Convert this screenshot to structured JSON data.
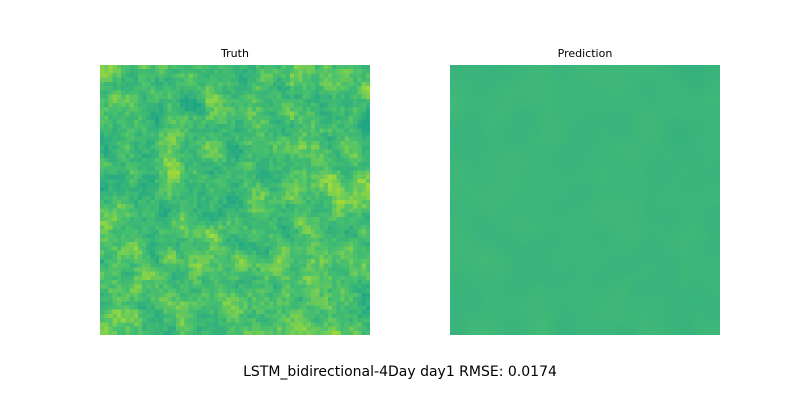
{
  "chart_data": [
    {
      "type": "heatmap",
      "title": "Truth",
      "colormap": "viridis",
      "grid": false,
      "axes_visible": false,
      "resolution": 64,
      "value_range": [
        0.55,
        0.95
      ],
      "seed": 7
    },
    {
      "type": "heatmap",
      "title": "Prediction",
      "colormap": "viridis",
      "grid": false,
      "axes_visible": false,
      "resolution": 64,
      "value_range": [
        0.55,
        0.95
      ],
      "seed": 11
    }
  ],
  "suptitle": "LSTM_bidirectional-4Day day1 RMSE: 0.0174",
  "colors": {
    "truth_low": "#21a685",
    "truth_mid": "#4ac16d",
    "truth_high": "#a0da39",
    "prediction_base": "#3bb57a"
  }
}
